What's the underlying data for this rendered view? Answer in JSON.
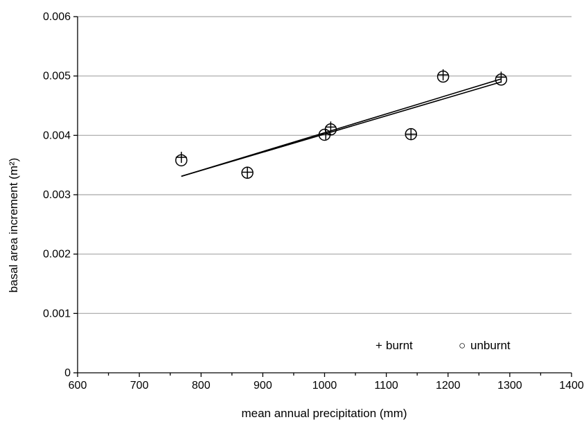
{
  "chart_data": {
    "type": "scatter",
    "xlabel": "mean annual precipitation (mm)",
    "ylabel": "basal area increment (m²)",
    "xlim": [
      600,
      1400
    ],
    "ylim": [
      0,
      0.006
    ],
    "x_ticks": [
      "600",
      "700",
      "800",
      "900",
      "1000",
      "1100",
      "1200",
      "1300",
      "1400"
    ],
    "y_ticks": [
      "0",
      "0.001",
      "0.002",
      "0.003",
      "0.004",
      "0.005",
      "0.006"
    ],
    "grid": "horizontal",
    "legend_position": "bottom-right",
    "series": [
      {
        "name": "burnt",
        "marker": "plus",
        "x": [
          768,
          875,
          1002,
          1010,
          1140,
          1192,
          1286
        ],
        "y": [
          0.00363,
          0.00338,
          0.00402,
          0.00414,
          0.00402,
          0.00502,
          0.00498
        ]
      },
      {
        "name": "unburnt",
        "marker": "circle",
        "x": [
          768,
          875,
          1000,
          1010,
          1140,
          1192,
          1286
        ],
        "y": [
          0.00358,
          0.00337,
          0.00401,
          0.0041,
          0.00402,
          0.00499,
          0.00494
        ]
      }
    ],
    "trendlines": [
      {
        "series": "burnt",
        "x": [
          768,
          1286
        ],
        "y": [
          0.00331,
          0.00495
        ]
      },
      {
        "series": "unburnt",
        "x": [
          768,
          1286
        ],
        "y": [
          0.00331,
          0.0049
        ]
      }
    ],
    "legend_symbols": {
      "burnt": "+",
      "unburnt": "○"
    }
  }
}
